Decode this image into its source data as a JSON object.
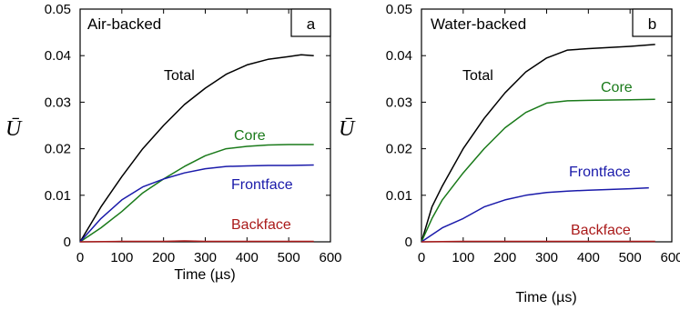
{
  "chart_data": [
    {
      "type": "line",
      "title": "Air-backed",
      "panel_letter": "a",
      "xlabel": "Time (µs)",
      "ylabel": "Ū",
      "xlim": [
        0,
        600
      ],
      "ylim": [
        0,
        0.05
      ],
      "xticks": [
        "0",
        "100",
        "200",
        "300",
        "400",
        "500",
        "600"
      ],
      "yticks": [
        "0",
        "0.01",
        "0.02",
        "0.03",
        "0.04",
        "0.05"
      ],
      "grid": false,
      "series": [
        {
          "name": "Total",
          "color": "#000000",
          "x": [
            0,
            50,
            100,
            150,
            200,
            250,
            300,
            350,
            400,
            450,
            500,
            530,
            560
          ],
          "y": [
            0,
            0.0075,
            0.014,
            0.02,
            0.025,
            0.0295,
            0.033,
            0.036,
            0.038,
            0.0392,
            0.0398,
            0.0402,
            0.04
          ]
        },
        {
          "name": "Core",
          "color": "#1a7a1a",
          "x": [
            0,
            50,
            100,
            150,
            200,
            250,
            300,
            350,
            400,
            450,
            500,
            560
          ],
          "y": [
            0,
            0.003,
            0.0065,
            0.0105,
            0.0135,
            0.0162,
            0.0185,
            0.02,
            0.0205,
            0.0208,
            0.0209,
            0.0209
          ]
        },
        {
          "name": "Frontface",
          "color": "#1a1aaa",
          "x": [
            0,
            50,
            100,
            150,
            200,
            250,
            300,
            350,
            400,
            450,
            500,
            560
          ],
          "y": [
            0,
            0.005,
            0.009,
            0.0118,
            0.0135,
            0.0148,
            0.0157,
            0.0162,
            0.0163,
            0.0164,
            0.0164,
            0.0165
          ]
        },
        {
          "name": "Backface",
          "color": "#aa1a1a",
          "x": [
            0,
            100,
            200,
            250,
            300,
            400,
            500,
            560
          ],
          "y": [
            0,
            0.0001,
            0.0001,
            0.0002,
            0.0001,
            0.0001,
            0.0001,
            0.0001
          ]
        }
      ]
    },
    {
      "type": "line",
      "title": "Water-backed",
      "panel_letter": "b",
      "xlabel": "Time (µs)",
      "ylabel": "Ū",
      "xlim": [
        0,
        600
      ],
      "ylim": [
        0,
        0.05
      ],
      "xticks": [
        "0",
        "100",
        "200",
        "300",
        "400",
        "500",
        "600"
      ],
      "yticks": [
        "0",
        "0.01",
        "0.02",
        "0.03",
        "0.04",
        "0.05"
      ],
      "grid": false,
      "series": [
        {
          "name": "Total",
          "color": "#000000",
          "x": [
            0,
            25,
            50,
            100,
            150,
            200,
            250,
            300,
            350,
            400,
            500,
            560
          ],
          "y": [
            0,
            0.0075,
            0.012,
            0.02,
            0.0265,
            0.032,
            0.0365,
            0.0395,
            0.0412,
            0.0415,
            0.042,
            0.0424
          ]
        },
        {
          "name": "Core",
          "color": "#1a7a1a",
          "x": [
            0,
            25,
            50,
            100,
            150,
            200,
            250,
            300,
            350,
            400,
            500,
            560
          ],
          "y": [
            0,
            0.005,
            0.009,
            0.0148,
            0.02,
            0.0245,
            0.0278,
            0.0298,
            0.0303,
            0.0304,
            0.0305,
            0.0306
          ]
        },
        {
          "name": "Frontface",
          "color": "#1a1aaa",
          "x": [
            0,
            25,
            50,
            100,
            150,
            200,
            250,
            300,
            350,
            400,
            500,
            545
          ],
          "y": [
            0,
            0.0015,
            0.003,
            0.005,
            0.0075,
            0.009,
            0.01,
            0.0106,
            0.0109,
            0.0111,
            0.0114,
            0.0116
          ]
        },
        {
          "name": "Backface",
          "color": "#aa1a1a",
          "x": [
            0,
            100,
            200,
            300,
            400,
            500,
            560
          ],
          "y": [
            0,
            0.0001,
            0.0001,
            0.0001,
            0.0001,
            0.0001,
            0.0001
          ]
        }
      ]
    }
  ]
}
